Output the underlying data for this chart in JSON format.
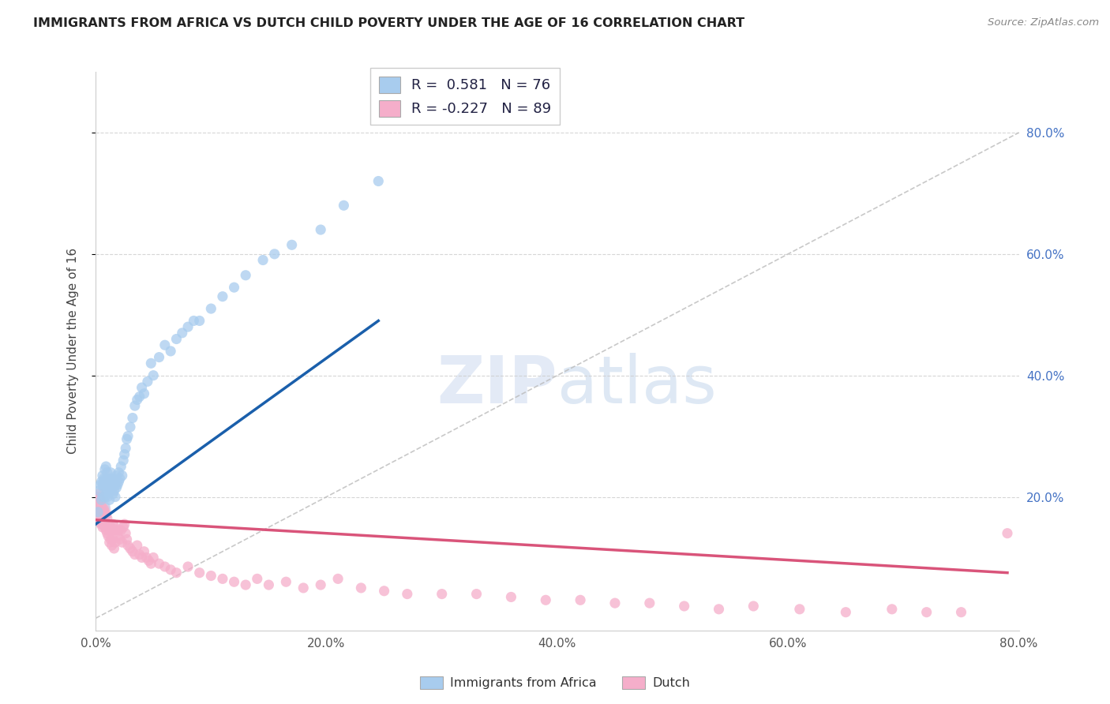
{
  "title": "IMMIGRANTS FROM AFRICA VS DUTCH CHILD POVERTY UNDER THE AGE OF 16 CORRELATION CHART",
  "source": "Source: ZipAtlas.com",
  "ylabel": "Child Poverty Under the Age of 16",
  "xlim": [
    0,
    0.8
  ],
  "ylim": [
    -0.02,
    0.9
  ],
  "xticks": [
    0.0,
    0.2,
    0.4,
    0.6,
    0.8
  ],
  "xtick_labels": [
    "0.0%",
    "20.0%",
    "40.0%",
    "60.0%",
    "80.0%"
  ],
  "ytick_labels_right": [
    "20.0%",
    "40.0%",
    "60.0%",
    "80.0%"
  ],
  "yticks_right": [
    0.2,
    0.4,
    0.6,
    0.8
  ],
  "blue_R": 0.581,
  "blue_N": 76,
  "pink_R": -0.227,
  "pink_N": 89,
  "blue_color": "#A8CCEE",
  "pink_color": "#F5AECA",
  "blue_line_color": "#1A5FAB",
  "pink_line_color": "#D9547A",
  "legend_label_blue": "Immigrants from Africa",
  "legend_label_pink": "Dutch",
  "blue_scatter_x": [
    0.002,
    0.003,
    0.004,
    0.005,
    0.005,
    0.006,
    0.006,
    0.006,
    0.007,
    0.007,
    0.008,
    0.008,
    0.008,
    0.009,
    0.009,
    0.009,
    0.01,
    0.01,
    0.01,
    0.011,
    0.011,
    0.012,
    0.012,
    0.012,
    0.013,
    0.013,
    0.013,
    0.014,
    0.014,
    0.015,
    0.015,
    0.016,
    0.016,
    0.017,
    0.017,
    0.018,
    0.018,
    0.019,
    0.02,
    0.02,
    0.021,
    0.022,
    0.023,
    0.024,
    0.025,
    0.026,
    0.027,
    0.028,
    0.03,
    0.032,
    0.034,
    0.036,
    0.038,
    0.04,
    0.042,
    0.045,
    0.048,
    0.05,
    0.055,
    0.06,
    0.065,
    0.07,
    0.075,
    0.08,
    0.085,
    0.09,
    0.1,
    0.11,
    0.12,
    0.13,
    0.145,
    0.155,
    0.17,
    0.195,
    0.215,
    0.245
  ],
  "blue_scatter_y": [
    0.175,
    0.21,
    0.22,
    0.195,
    0.225,
    0.2,
    0.22,
    0.235,
    0.215,
    0.23,
    0.2,
    0.22,
    0.245,
    0.215,
    0.23,
    0.25,
    0.2,
    0.22,
    0.24,
    0.21,
    0.225,
    0.195,
    0.215,
    0.23,
    0.21,
    0.225,
    0.24,
    0.215,
    0.23,
    0.205,
    0.225,
    0.21,
    0.23,
    0.2,
    0.22,
    0.215,
    0.235,
    0.22,
    0.225,
    0.24,
    0.23,
    0.25,
    0.235,
    0.26,
    0.27,
    0.28,
    0.295,
    0.3,
    0.315,
    0.33,
    0.35,
    0.36,
    0.365,
    0.38,
    0.37,
    0.39,
    0.42,
    0.4,
    0.43,
    0.45,
    0.44,
    0.46,
    0.47,
    0.48,
    0.49,
    0.49,
    0.51,
    0.53,
    0.545,
    0.565,
    0.59,
    0.6,
    0.615,
    0.64,
    0.68,
    0.72
  ],
  "pink_scatter_x": [
    0.001,
    0.002,
    0.003,
    0.003,
    0.004,
    0.004,
    0.005,
    0.005,
    0.006,
    0.006,
    0.007,
    0.007,
    0.008,
    0.008,
    0.009,
    0.009,
    0.01,
    0.01,
    0.011,
    0.011,
    0.012,
    0.012,
    0.013,
    0.013,
    0.014,
    0.014,
    0.015,
    0.015,
    0.016,
    0.016,
    0.017,
    0.017,
    0.018,
    0.019,
    0.02,
    0.021,
    0.022,
    0.023,
    0.024,
    0.025,
    0.026,
    0.027,
    0.028,
    0.03,
    0.032,
    0.034,
    0.036,
    0.038,
    0.04,
    0.042,
    0.044,
    0.046,
    0.048,
    0.05,
    0.055,
    0.06,
    0.065,
    0.07,
    0.08,
    0.09,
    0.1,
    0.11,
    0.12,
    0.13,
    0.14,
    0.15,
    0.165,
    0.18,
    0.195,
    0.21,
    0.23,
    0.25,
    0.27,
    0.3,
    0.33,
    0.36,
    0.39,
    0.42,
    0.45,
    0.48,
    0.51,
    0.54,
    0.57,
    0.61,
    0.65,
    0.69,
    0.72,
    0.75,
    0.79
  ],
  "pink_scatter_y": [
    0.185,
    0.2,
    0.205,
    0.17,
    0.195,
    0.16,
    0.185,
    0.155,
    0.175,
    0.15,
    0.18,
    0.155,
    0.175,
    0.15,
    0.17,
    0.145,
    0.165,
    0.14,
    0.155,
    0.135,
    0.145,
    0.125,
    0.15,
    0.13,
    0.145,
    0.12,
    0.155,
    0.13,
    0.145,
    0.115,
    0.15,
    0.125,
    0.145,
    0.135,
    0.145,
    0.13,
    0.145,
    0.125,
    0.15,
    0.155,
    0.14,
    0.13,
    0.12,
    0.115,
    0.11,
    0.105,
    0.12,
    0.105,
    0.1,
    0.11,
    0.1,
    0.095,
    0.09,
    0.1,
    0.09,
    0.085,
    0.08,
    0.075,
    0.085,
    0.075,
    0.07,
    0.065,
    0.06,
    0.055,
    0.065,
    0.055,
    0.06,
    0.05,
    0.055,
    0.065,
    0.05,
    0.045,
    0.04,
    0.04,
    0.04,
    0.035,
    0.03,
    0.03,
    0.025,
    0.025,
    0.02,
    0.015,
    0.02,
    0.015,
    0.01,
    0.015,
    0.01,
    0.01,
    0.14
  ],
  "blue_line_x0": 0.0,
  "blue_line_y0": 0.155,
  "blue_line_x1": 0.245,
  "blue_line_y1": 0.49,
  "pink_line_x0": 0.0,
  "pink_line_y0": 0.162,
  "pink_line_x1": 0.79,
  "pink_line_y1": 0.075
}
